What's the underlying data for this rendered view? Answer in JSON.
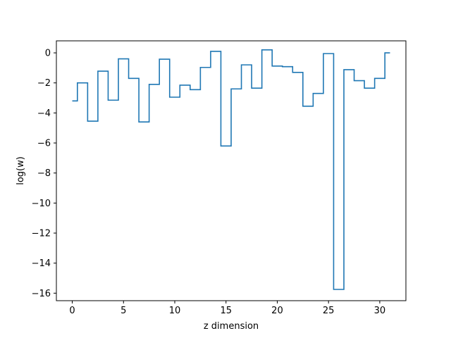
{
  "chart_data": {
    "type": "line",
    "drawstyle": "steps-mid",
    "title": "",
    "xlabel": "z dimension",
    "ylabel": "log(w)",
    "xlim": [
      -1.55,
      32.55
    ],
    "ylim": [
      -16.5,
      0.8
    ],
    "xticks": [
      0,
      5,
      10,
      15,
      20,
      25,
      30
    ],
    "yticks": [
      0,
      -2,
      -4,
      -6,
      -8,
      -10,
      -12,
      -14,
      -16
    ],
    "ytick_labels": [
      "0",
      "−2",
      "−4",
      "−6",
      "−8",
      "−10",
      "−12",
      "−14",
      "−16"
    ],
    "grid": false,
    "color": "#1f77b4",
    "series": [
      {
        "x": [
          0,
          1,
          2,
          3,
          4,
          5,
          6,
          7,
          8,
          9,
          10,
          11,
          12,
          13,
          14,
          15,
          16,
          17,
          18,
          19,
          20,
          21,
          22,
          23,
          24,
          25,
          26,
          27,
          28,
          29,
          30,
          31
        ],
        "values": [
          -3.2,
          -2.0,
          -4.55,
          -1.22,
          -3.15,
          -0.4,
          -1.7,
          -4.6,
          -2.1,
          -0.42,
          -2.95,
          -2.15,
          -2.45,
          -0.97,
          0.1,
          -6.2,
          -2.4,
          -0.8,
          -2.35,
          0.2,
          -0.88,
          -0.92,
          -1.3,
          -3.55,
          -2.7,
          -0.05,
          -15.75,
          -1.12,
          -1.85,
          -2.35,
          -1.7,
          0.0
        ]
      }
    ]
  }
}
